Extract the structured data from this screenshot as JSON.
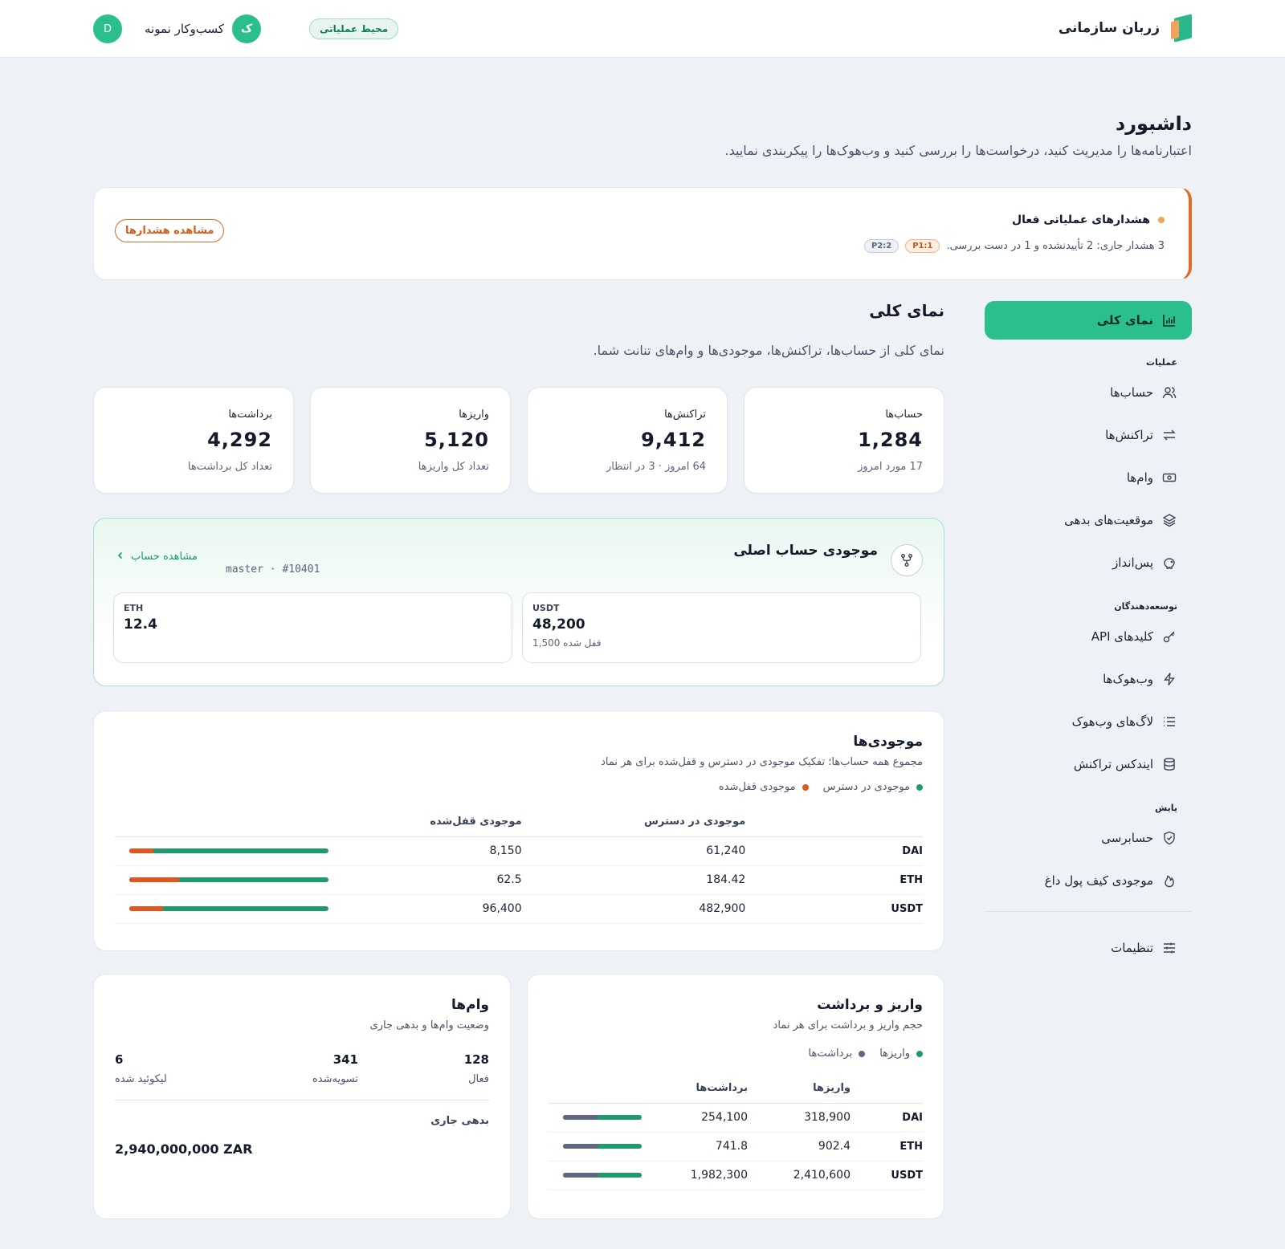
{
  "header": {
    "brand": "زربان سازمانی",
    "environment": "محیط عملیاتی",
    "org_initial": "ک",
    "org_name": "کسب‌وکار نمونه",
    "user_initial": "D"
  },
  "page": {
    "title": "داشبورد",
    "subtitle": "اعتبارنامه‌ها را مدیریت کنید، درخواست‌ها را بررسی کنید و وب‌هوک‌ها را پیکربندی نمایید."
  },
  "alert": {
    "title": "هشدارهای عملیاتی فعال",
    "body": "3 هشدار جاری: 2 تأییدنشده و 1 در دست بررسی.",
    "chip_p1": "P1:1",
    "chip_p2": "P2:2",
    "button": "مشاهده هشدارها"
  },
  "sidebar": {
    "active": "نمای کلی",
    "sections": [
      {
        "title": "عملیات",
        "items": [
          "حساب‌ها",
          "تراکنش‌ها",
          "وام‌ها",
          "موقعیت‌های بدهی",
          "پس‌انداز"
        ]
      },
      {
        "title": "توسعه‌دهندگان",
        "items": [
          "کلیدهای API",
          "وب‌هوک‌ها",
          "لاگ‌های وب‌هوک",
          "ایندکس تراکنش"
        ]
      },
      {
        "title": "پایش",
        "items": [
          "حسابرسی",
          "موجودی کیف پول داغ"
        ]
      }
    ],
    "settings": "تنظیمات"
  },
  "overview": {
    "title": "نمای کلی",
    "subtitle": "نمای کلی از حساب‌ها، تراکنش‌ها، موجودی‌ها و وام‌های تنانت شما."
  },
  "stats": [
    {
      "label": "حساب‌ها",
      "value": "1,284",
      "meta": "17 مورد امروز"
    },
    {
      "label": "تراکنش‌ها",
      "value": "9,412",
      "meta": "64 امروز · 3 در انتظار"
    },
    {
      "label": "واریزها",
      "value": "5,120",
      "meta": "تعداد کل واریزها"
    },
    {
      "label": "برداشت‌ها",
      "value": "4,292",
      "meta": "تعداد کل برداشت‌ها"
    }
  ],
  "master": {
    "title": "موجودی حساب اصلی",
    "link": "مشاهده حساب",
    "meta": "master · #10401",
    "balances": [
      {
        "symbol": "USDT",
        "value": "48,200",
        "locked": "قفل شده 1,500"
      },
      {
        "symbol": "ETH",
        "value": "12.4",
        "locked": ""
      }
    ]
  },
  "holdings": {
    "title": "موجودی‌ها",
    "subtitle": "مجموع همه حساب‌ها؛ تفکیک موجودی در دسترس و قفل‌شده برای هر نماد",
    "legend_available": "موجودی در دسترس",
    "legend_locked": "موجودی قفل‌شده",
    "col_available": "موجودی در دسترس",
    "col_locked": "موجودی قفل‌شده",
    "rows": [
      {
        "symbol": "DAI",
        "available": "61,240",
        "locked": "8,150",
        "locked_frac": 0.12
      },
      {
        "symbol": "ETH",
        "available": "184.42",
        "locked": "62.5",
        "locked_frac": 0.25
      },
      {
        "symbol": "USDT",
        "available": "482,900",
        "locked": "96,400",
        "locked_frac": 0.17
      }
    ],
    "colors": {
      "available": "#1f9a70",
      "locked": "#e0561c"
    }
  },
  "flows": {
    "title": "واریز و برداشت",
    "subtitle": "حجم واریز و برداشت برای هر نماد",
    "legend_deposits": "واریزها",
    "legend_withdrawals": "برداشت‌ها",
    "col_deposits": "واریزها",
    "col_withdrawals": "برداشت‌ها",
    "rows": [
      {
        "symbol": "DAI",
        "deposits": "318,900",
        "withdrawals": "254,100",
        "withdrawal_frac": 0.44
      },
      {
        "symbol": "ETH",
        "deposits": "902.4",
        "withdrawals": "741.8",
        "withdrawal_frac": 0.45
      },
      {
        "symbol": "USDT",
        "deposits": "2,410,600",
        "withdrawals": "1,982,300",
        "withdrawal_frac": 0.45
      }
    ],
    "colors": {
      "deposits": "#1f9a70",
      "withdrawals": "#5f6783"
    }
  },
  "loans": {
    "title": "وام‌ها",
    "subtitle": "وضعیت وام‌ها و بدهی جاری",
    "active_value": "128",
    "active_label": "فعال",
    "settled_value": "341",
    "settled_label": "تسویه‌شده",
    "liquidated_value": "6",
    "liquidated_label": "لیکوئید شده",
    "debt_label": "بدهی جاری",
    "debt_value": "2,940,000,000 ZAR"
  }
}
